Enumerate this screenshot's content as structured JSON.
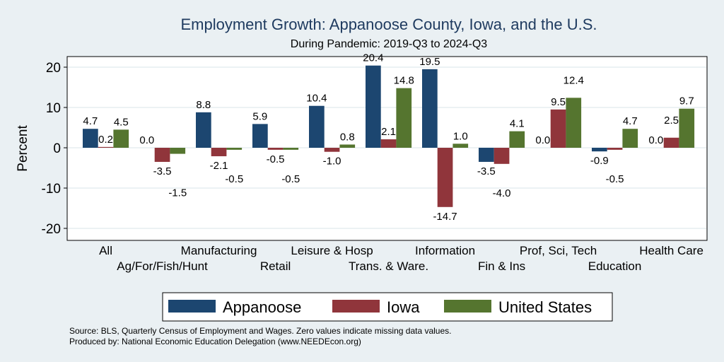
{
  "chart_data": {
    "type": "bar",
    "title": "Employment Growth: Appanoose County, Iowa, and the U.S.",
    "subtitle": "During Pandemic: 2019-Q3 to 2024-Q3",
    "ylabel": "Percent",
    "xlabel": "",
    "ylim": [
      -23,
      23
    ],
    "yticks": [
      20,
      10,
      0,
      -10,
      -20
    ],
    "grid": true,
    "legend_position": "bottom",
    "categories": [
      "All",
      "Ag/For/Fish/Hunt",
      "Manufacturing",
      "Retail",
      "Leisure & Hosp",
      "Trans. & Ware.",
      "Information",
      "Fin & Ins",
      "Prof, Sci, Tech",
      "Education",
      "Health Care"
    ],
    "series": [
      {
        "name": "Appanoose",
        "color": "#1c4670",
        "values": [
          4.7,
          0.0,
          8.8,
          5.9,
          10.4,
          20.4,
          19.5,
          -3.5,
          0.0,
          -0.9,
          0.0
        ]
      },
      {
        "name": "Iowa",
        "color": "#90353b",
        "values": [
          0.2,
          -3.5,
          -2.1,
          -0.5,
          -1.0,
          2.1,
          -14.7,
          -4.0,
          9.5,
          -0.5,
          2.5
        ]
      },
      {
        "name": "United States",
        "color": "#55752f",
        "values": [
          4.5,
          -1.5,
          -0.5,
          -0.5,
          0.8,
          14.8,
          1.0,
          4.1,
          12.4,
          4.7,
          9.7
        ]
      }
    ],
    "notes": [
      "Source: BLS, Quarterly Census of Employment and Wages. Zero values indicate missing data values.",
      "Produced by: National Economic Education Delegation (www.NEEDEcon.org)"
    ]
  }
}
